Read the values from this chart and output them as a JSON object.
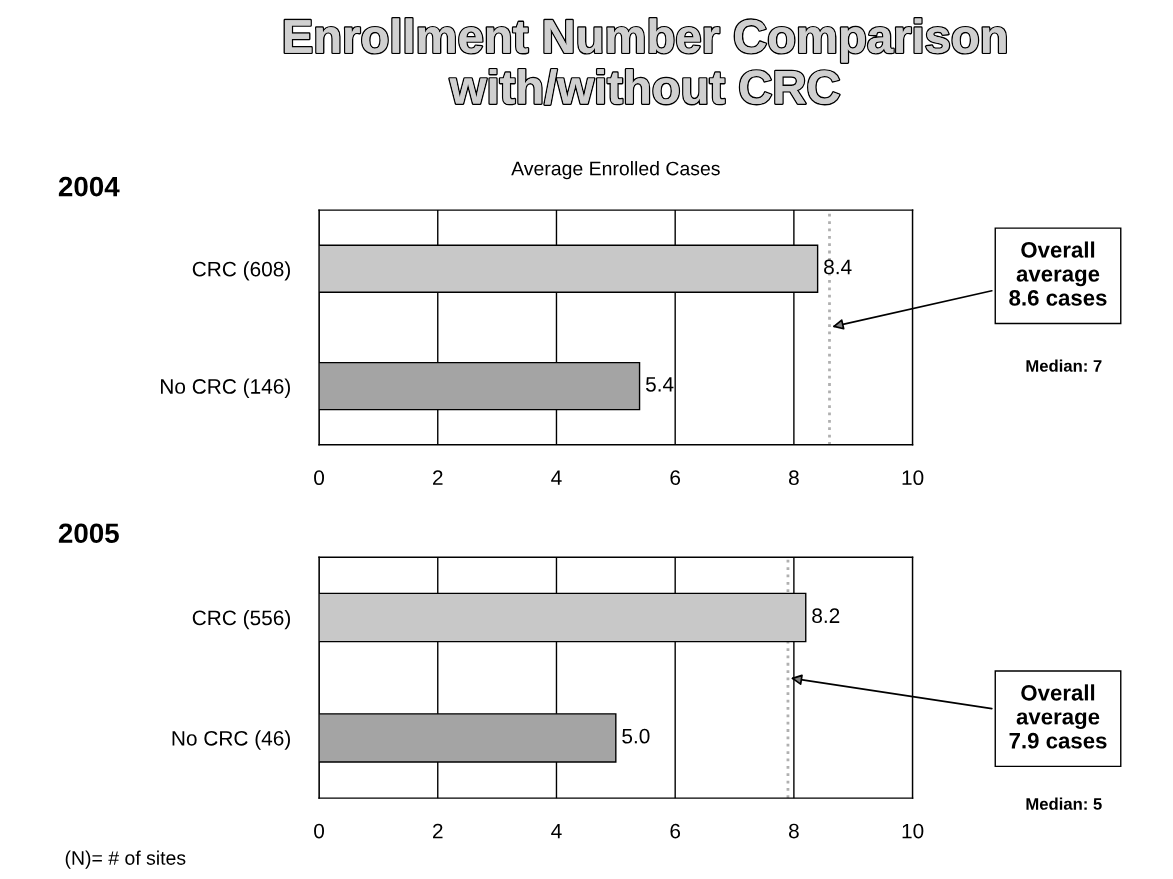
{
  "chart_data": [
    {
      "type": "bar",
      "orientation": "horizontal",
      "title": "Enrollment Number Comparison\nwith/without CRC",
      "subtitle": "2004",
      "xlabel": "Average Enrolled Cases",
      "categories": [
        "CRC (608)",
        "No CRC (146)"
      ],
      "values": [
        8.4,
        5.4
      ],
      "colors": [
        "#c8c8c8",
        "#a4a4a4"
      ],
      "xlim": [
        0,
        10
      ],
      "xticks": [
        0,
        2,
        4,
        6,
        8,
        10
      ],
      "grid": "x",
      "data_labels": true,
      "ref_lines": [
        {
          "axis": "x",
          "value": 8.6,
          "label": "Overall\naverage\n8.6 cases",
          "color": "#b0b0b0",
          "line_style": "dotted"
        }
      ],
      "annotations": [
        "Median: 7"
      ]
    },
    {
      "type": "bar",
      "orientation": "horizontal",
      "subtitle": "2005",
      "categories": [
        "CRC (556)",
        "No CRC (46)"
      ],
      "values": [
        8.2,
        5.0
      ],
      "colors": [
        "#c8c8c8",
        "#a4a4a4"
      ],
      "value_labels": [
        "8.2",
        "5.0"
      ],
      "xlim": [
        0,
        10
      ],
      "xticks": [
        0,
        2,
        4,
        6,
        8,
        10
      ],
      "grid": "x",
      "ref_lines": [
        {
          "axis": "x",
          "value": 7.9,
          "label": "Overall\naverage\n7.9 cases",
          "color": "#b0b0b0",
          "line_style": "dotted"
        }
      ],
      "annotations": [
        "Median: 5",
        "(N)= # of sites"
      ]
    }
  ]
}
